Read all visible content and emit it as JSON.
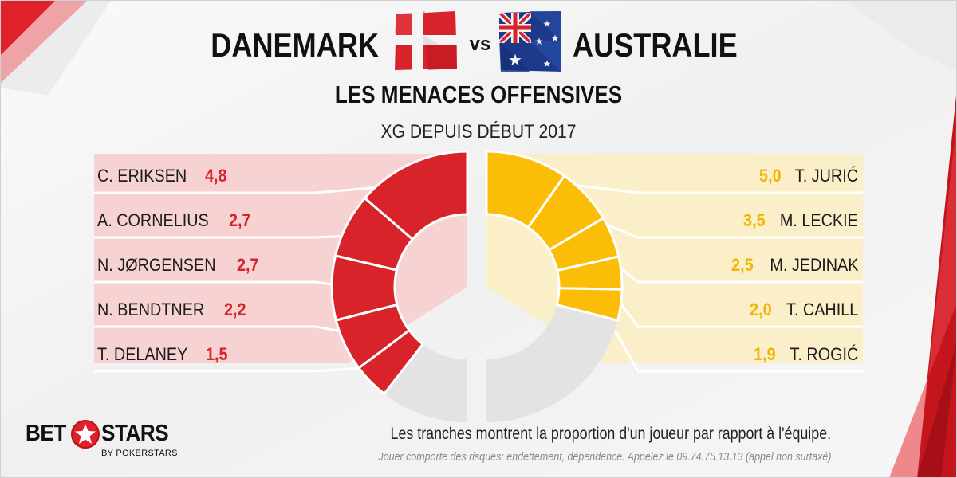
{
  "header": {
    "team_left": "DANEMARK",
    "vs": "vs",
    "team_right": "AUSTRALIE",
    "title": "LES MENACES OFFENSIVES",
    "subtitle": "XG DEPUIS DÉBUT 2017"
  },
  "colors": {
    "denmark": "#d8232a",
    "australia": "#fbbd08",
    "denmark_panel": "#f6d2d3",
    "australia_panel": "#fbefc9",
    "remainder": "#e3e3e3"
  },
  "chart_data": [
    {
      "type": "pie",
      "team": "DANEMARK",
      "categories": [
        "C. ERIKSEN",
        "A. CORNELIUS",
        "N. JØRGENSEN",
        "N. BENDTNER",
        "T. DELANEY"
      ],
      "values": [
        4.8,
        2.7,
        2.7,
        2.2,
        1.5
      ],
      "value_labels": [
        "4,8",
        "2,7",
        "2,7",
        "2,2",
        "1,5"
      ],
      "remainder_fraction": 0.21,
      "side": "left"
    },
    {
      "type": "pie",
      "team": "AUSTRALIE",
      "categories": [
        "T. JURIĆ",
        "M. LECKIE",
        "M. JEDINAK",
        "T. CAHILL",
        "T. ROGIĆ"
      ],
      "values": [
        5.0,
        3.5,
        2.5,
        2.0,
        1.9
      ],
      "value_labels": [
        "5,0",
        "3,5",
        "2,5",
        "2,0",
        "1,9"
      ],
      "remainder_fraction": 0.42,
      "side": "right"
    }
  ],
  "footer": {
    "logo_left": "BET",
    "logo_right": "STARS",
    "logo_sub": "BY POKERSTARS",
    "note": "Les tranches montrent la proportion d'un joueur par rapport à l'équipe.",
    "disclaimer": "Jouer comporte des risques: endettement, dépendence. Appelez le 09.74.75.13.13  (appel non surtaxé)"
  }
}
